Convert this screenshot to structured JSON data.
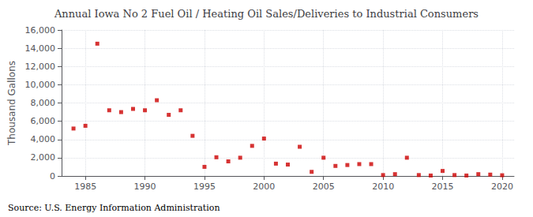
{
  "chart_data": {
    "type": "scatter",
    "title": "Annual Iowa No 2 Fuel Oil / Heating Oil Sales/Deliveries to Industrial Consumers",
    "ylabel": "Thousand Gallons",
    "annotation": "Source: U.S. Energy Information Administration",
    "color": "#cc0000",
    "marker": "square",
    "grid": true,
    "xlim": [
      1983,
      2021
    ],
    "xticks": [
      1985,
      1990,
      1995,
      2000,
      2005,
      2010,
      2015,
      2020
    ],
    "ylim": [
      0,
      16001
    ],
    "yticks": [
      0,
      {
        "value": 2000,
        "label": "2,000"
      },
      {
        "value": 4000,
        "label": "4,000"
      },
      {
        "value": 6000,
        "label": "6,000"
      },
      {
        "value": 8000,
        "label": "8,000"
      },
      {
        "value": 10000,
        "label": "10,000"
      },
      {
        "value": 12000,
        "label": "12,000"
      },
      {
        "value": 14000,
        "label": "14,000"
      },
      {
        "value": 16000,
        "label": "16,000"
      }
    ],
    "x": [
      1984,
      1985,
      1986,
      1987,
      1988,
      1989,
      1990,
      1991,
      1992,
      1993,
      1994,
      1995,
      1996,
      1997,
      1998,
      1999,
      2000,
      2001,
      2002,
      2003,
      2004,
      2005,
      2006,
      2007,
      2008,
      2009,
      2010,
      2011,
      2012,
      2013,
      2014,
      2015,
      2016,
      2017,
      2018,
      2019,
      2020
    ],
    "values": [
      5200,
      5500,
      14500,
      7200,
      7000,
      7350,
      7200,
      8300,
      6700,
      7200,
      4400,
      1000,
      2050,
      1600,
      2000,
      3300,
      4100,
      1350,
      1250,
      3200,
      450,
      2000,
      1100,
      1200,
      1300,
      1300,
      100,
      200,
      2000,
      100,
      50,
      550,
      100,
      50,
      200,
      150,
      80
    ]
  }
}
